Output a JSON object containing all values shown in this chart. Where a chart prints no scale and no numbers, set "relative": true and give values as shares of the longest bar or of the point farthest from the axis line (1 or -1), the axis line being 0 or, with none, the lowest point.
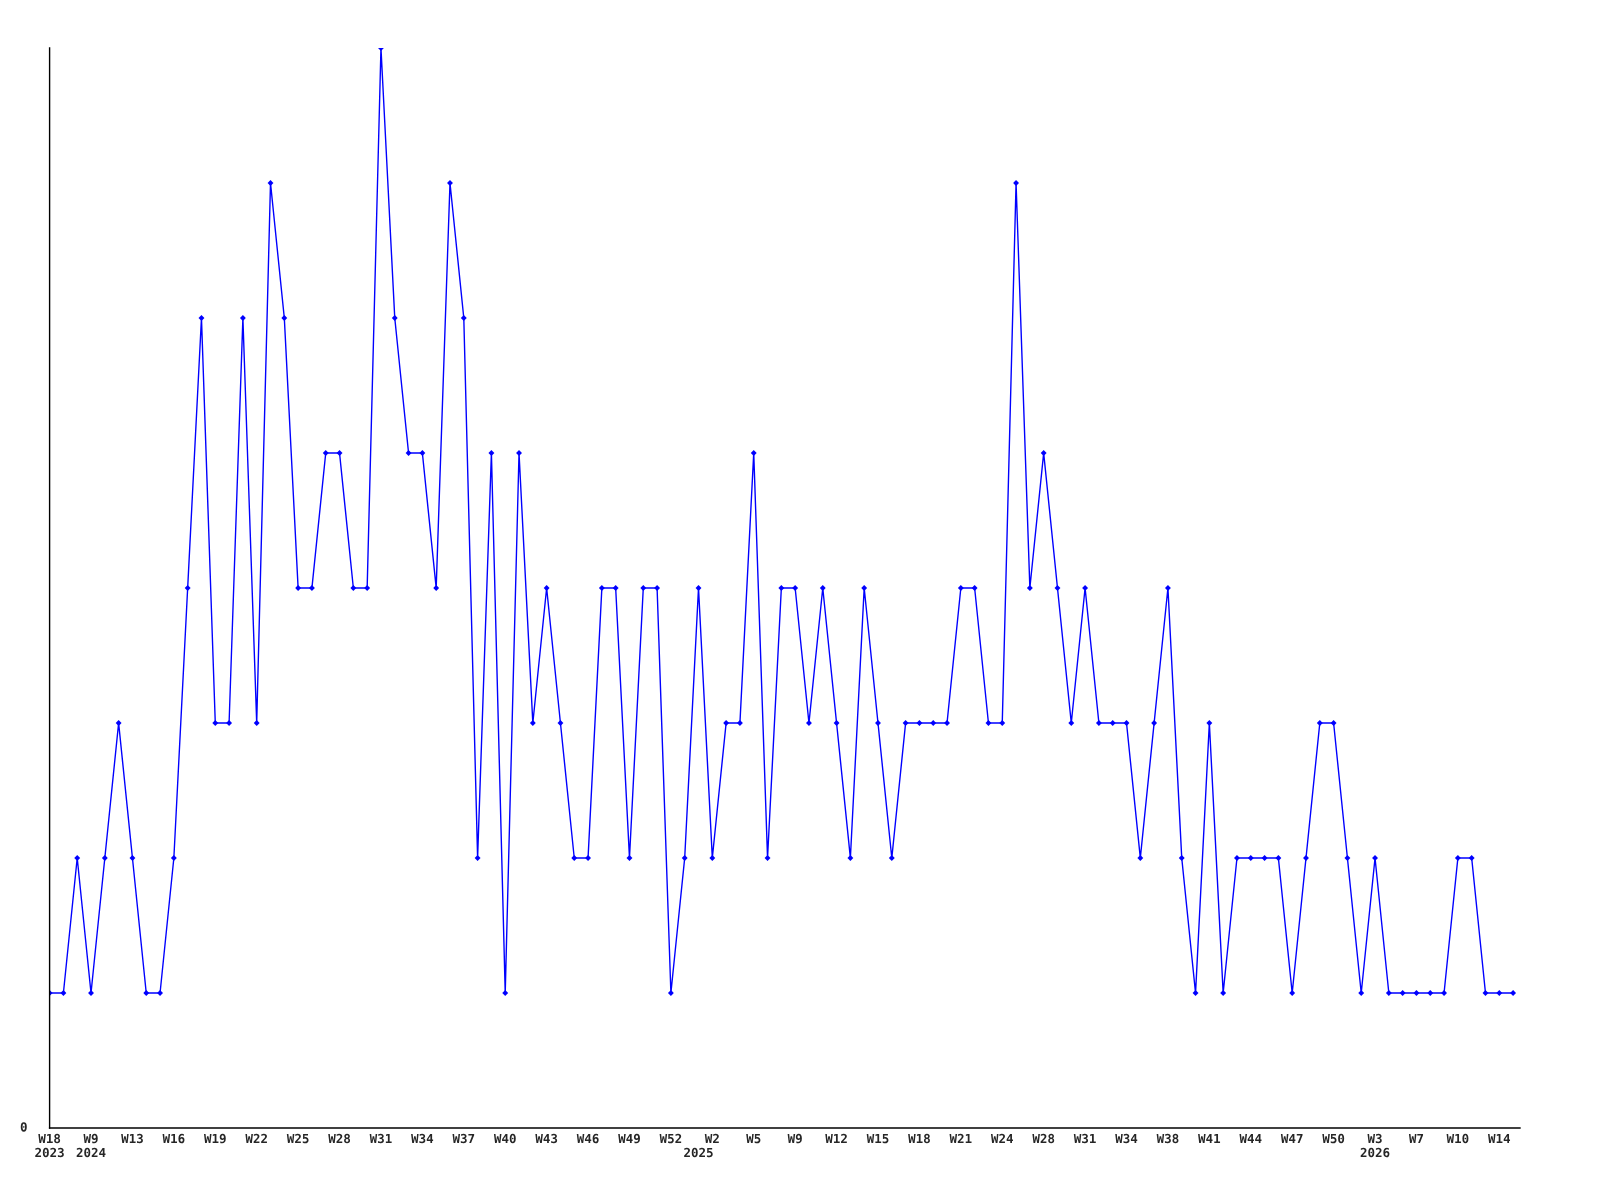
{
  "chart_data": {
    "type": "line",
    "relative": true,
    "marker": "diamond",
    "line_style": "solid",
    "grid": false,
    "legend": false,
    "annotations": [
      "0"
    ],
    "categories": [
      "W18\n2023",
      null,
      null,
      "W9\n2024",
      null,
      null,
      "W13",
      null,
      null,
      "W16",
      null,
      null,
      "W19",
      null,
      null,
      "W22",
      null,
      null,
      "W25",
      null,
      null,
      "W28",
      null,
      null,
      "W31",
      null,
      null,
      "W34",
      null,
      null,
      "W37",
      null,
      null,
      "W40",
      null,
      null,
      "W43",
      null,
      null,
      "W46",
      null,
      null,
      "W49",
      null,
      null,
      "W52",
      null,
      "\n2025",
      "W2",
      null,
      null,
      "W5",
      null,
      null,
      "W9",
      null,
      null,
      "W12",
      null,
      null,
      "W15",
      null,
      null,
      "W18",
      null,
      null,
      "W21",
      null,
      null,
      "W24",
      null,
      null,
      "W28",
      null,
      null,
      "W31",
      null,
      null,
      "W34",
      null,
      null,
      "W38",
      null,
      null,
      "W41",
      null,
      null,
      "W44",
      null,
      null,
      "W47",
      null,
      null,
      "W50",
      null,
      null,
      "W3\n2026",
      null,
      null,
      "W7",
      null,
      null,
      "W10",
      null,
      null,
      "W14",
      null
    ],
    "series": [
      {
        "color": "#0000ff",
        "values": [
          0.125,
          0.125,
          0.25,
          0.125,
          0.25,
          0.375,
          0.25,
          0.125,
          0.125,
          0.25,
          0.5,
          0.75,
          0.375,
          0.375,
          0.75,
          0.375,
          0.875,
          0.75,
          0.5,
          0.5,
          0.625,
          0.625,
          0.5,
          0.5,
          1,
          0.75,
          0.625,
          0.625,
          0.5,
          0.875,
          0.75,
          0.25,
          0.625,
          0.125,
          0.625,
          0.375,
          0.5,
          0.375,
          0.25,
          0.25,
          0.5,
          0.5,
          0.25,
          0.5,
          0.5,
          0.125,
          0.25,
          0.5,
          0.25,
          0.375,
          0.375,
          0.625,
          0.25,
          0.5,
          0.5,
          0.375,
          0.5,
          0.375,
          0.25,
          0.5,
          0.375,
          0.25,
          0.375,
          0.375,
          0.375,
          0.375,
          0.5,
          0.5,
          0.375,
          0.375,
          0.875,
          0.5,
          0.625,
          0.5,
          0.375,
          0.5,
          0.375,
          0.375,
          0.375,
          0.25,
          0.375,
          0.5,
          0.25,
          0.125,
          0.375,
          0.125,
          0.25,
          0.25,
          0.25,
          0.25,
          0.125,
          0.25,
          0.375,
          0.375,
          0.25,
          0.125,
          0.25,
          0.125,
          0.125,
          0.125,
          0.125,
          0.125,
          0.25,
          0.25,
          0.125,
          0.125,
          0.125
        ]
      }
    ]
  }
}
